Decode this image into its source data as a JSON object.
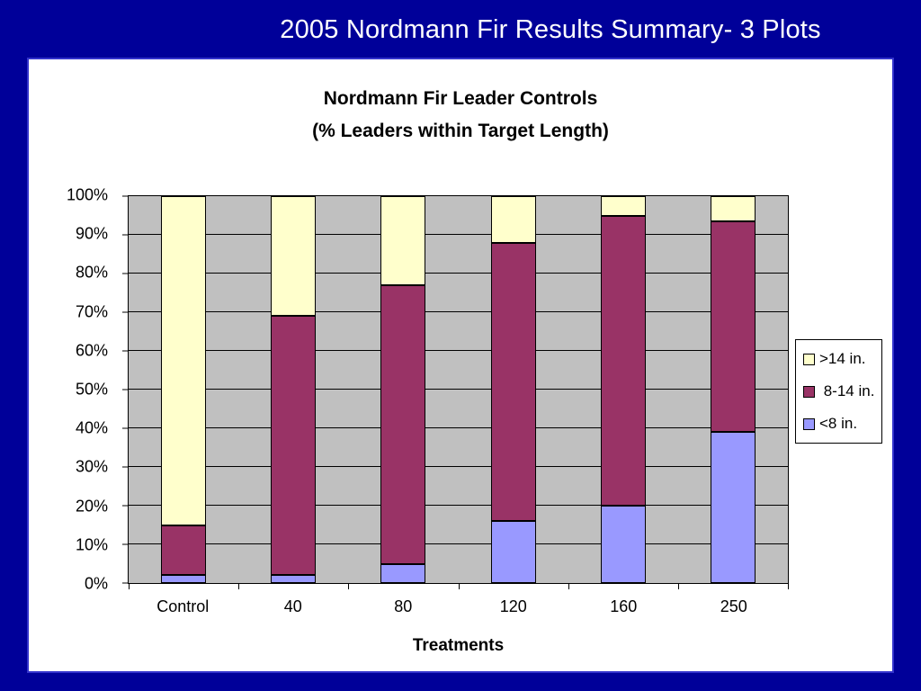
{
  "slide": {
    "title": "2005 Nordmann Fir Results Summary- 3 Plots"
  },
  "chart_data": {
    "type": "bar",
    "stacked": true,
    "percent_stacked": true,
    "title": "Nordmann Fir Leader Controls",
    "subtitle": "(% Leaders within Target Length)",
    "xlabel": "Treatments",
    "ylabel": "",
    "ylim": [
      0,
      100
    ],
    "grid": true,
    "plot_bg": "#c0c0c0",
    "legend_position": "right",
    "categories": [
      "Control",
      "40",
      "80",
      "120",
      "160",
      "250"
    ],
    "series": [
      {
        "name": "<8 in.",
        "color": "#9999ff",
        "values": [
          2,
          2,
          5,
          16,
          20,
          39
        ]
      },
      {
        "name": "8-14 in.",
        "color": "#993366",
        "values": [
          13,
          67,
          72,
          72,
          75,
          54.5
        ]
      },
      {
        "name": ">14 in.",
        "color": "#ffffcc",
        "values": [
          85,
          31,
          23,
          12,
          5,
          6.5
        ]
      }
    ],
    "y_ticks": [
      "100%",
      "90%",
      "80%",
      "70%",
      "60%",
      "50%",
      "40%",
      "30%",
      "20%",
      "10%",
      "0%"
    ],
    "legend": [
      {
        "label": ">14 in.",
        "color": "#ffffcc"
      },
      {
        "label": " 8-14 in.",
        "color": "#993366"
      },
      {
        "label": "<8 in.",
        "color": "#9999ff"
      }
    ]
  }
}
